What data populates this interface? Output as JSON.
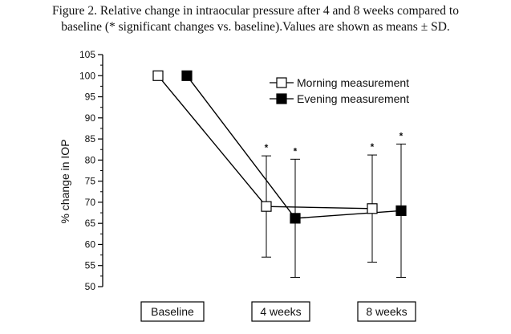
{
  "caption": {
    "line1": "Figure 2. Relative change in intraocular pressure after 4 and 8 weeks compared to",
    "line2": "baseline (* significant changes vs. baseline).Values are shown as means ± SD."
  },
  "chart_data": {
    "type": "line",
    "ylabel": "% change in IOP",
    "ylim": [
      50,
      105
    ],
    "yticks": [
      50,
      55,
      60,
      65,
      70,
      75,
      80,
      85,
      90,
      95,
      100,
      105
    ],
    "categories": [
      "Baseline",
      "4 weeks",
      "8 weeks"
    ],
    "series": [
      {
        "name": "Morning measurement",
        "marker": "open-square",
        "color": "#000000",
        "values": [
          100,
          69,
          68.5
        ],
        "sd": [
          0,
          12,
          12.7
        ],
        "significant": [
          false,
          true,
          true
        ]
      },
      {
        "name": "Evening measurement",
        "marker": "filled-square",
        "color": "#000000",
        "values": [
          100,
          66.2,
          68
        ],
        "sd": [
          0,
          14,
          15.8
        ],
        "significant": [
          false,
          true,
          true
        ]
      }
    ],
    "significance_marker": "*",
    "legend_position": "top-right",
    "grid": false
  }
}
